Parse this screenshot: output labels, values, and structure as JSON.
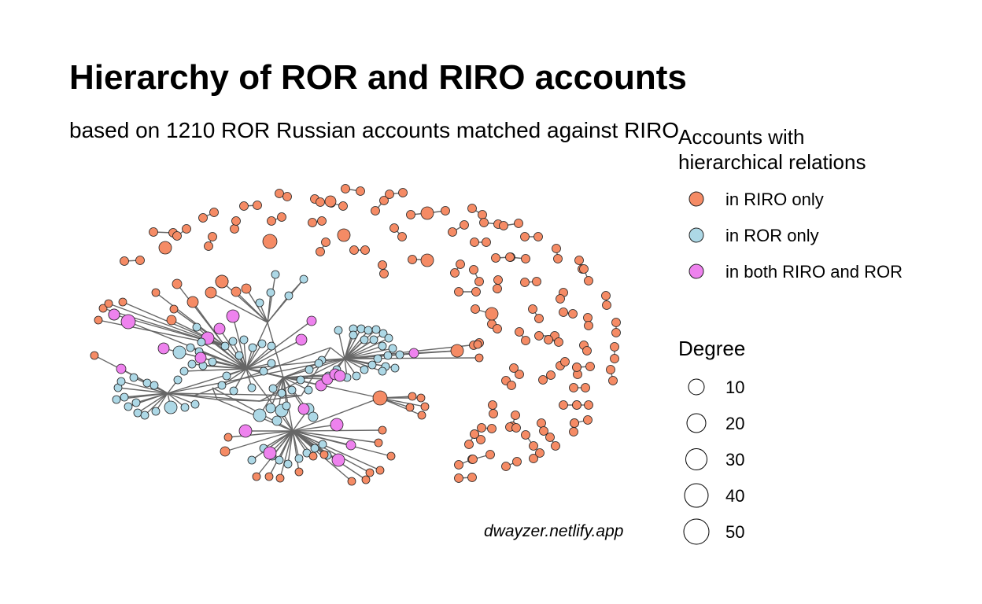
{
  "header": {
    "title": "Hierarchy of ROR and RIRO accounts",
    "subtitle": "based on 1210 ROR Russian accounts matched against RIRO"
  },
  "legend_accounts": {
    "title_line1": "Accounts with",
    "title_line2": "hierarchical relations",
    "items": [
      {
        "label": "in RIRO only",
        "color": "#F58B65"
      },
      {
        "label": "in ROR only",
        "color": "#ADD8E6"
      },
      {
        "label": "in both RIRO and ROR",
        "color": "#EE82EE"
      }
    ]
  },
  "legend_degree": {
    "title": "Degree",
    "items": [
      {
        "label": "10"
      },
      {
        "label": "20"
      },
      {
        "label": "30"
      },
      {
        "label": "40"
      },
      {
        "label": "50"
      }
    ]
  },
  "credit": "dwayzer.netlify.app",
  "colors": {
    "edge": "#666666",
    "node_stroke": "#222222"
  }
}
